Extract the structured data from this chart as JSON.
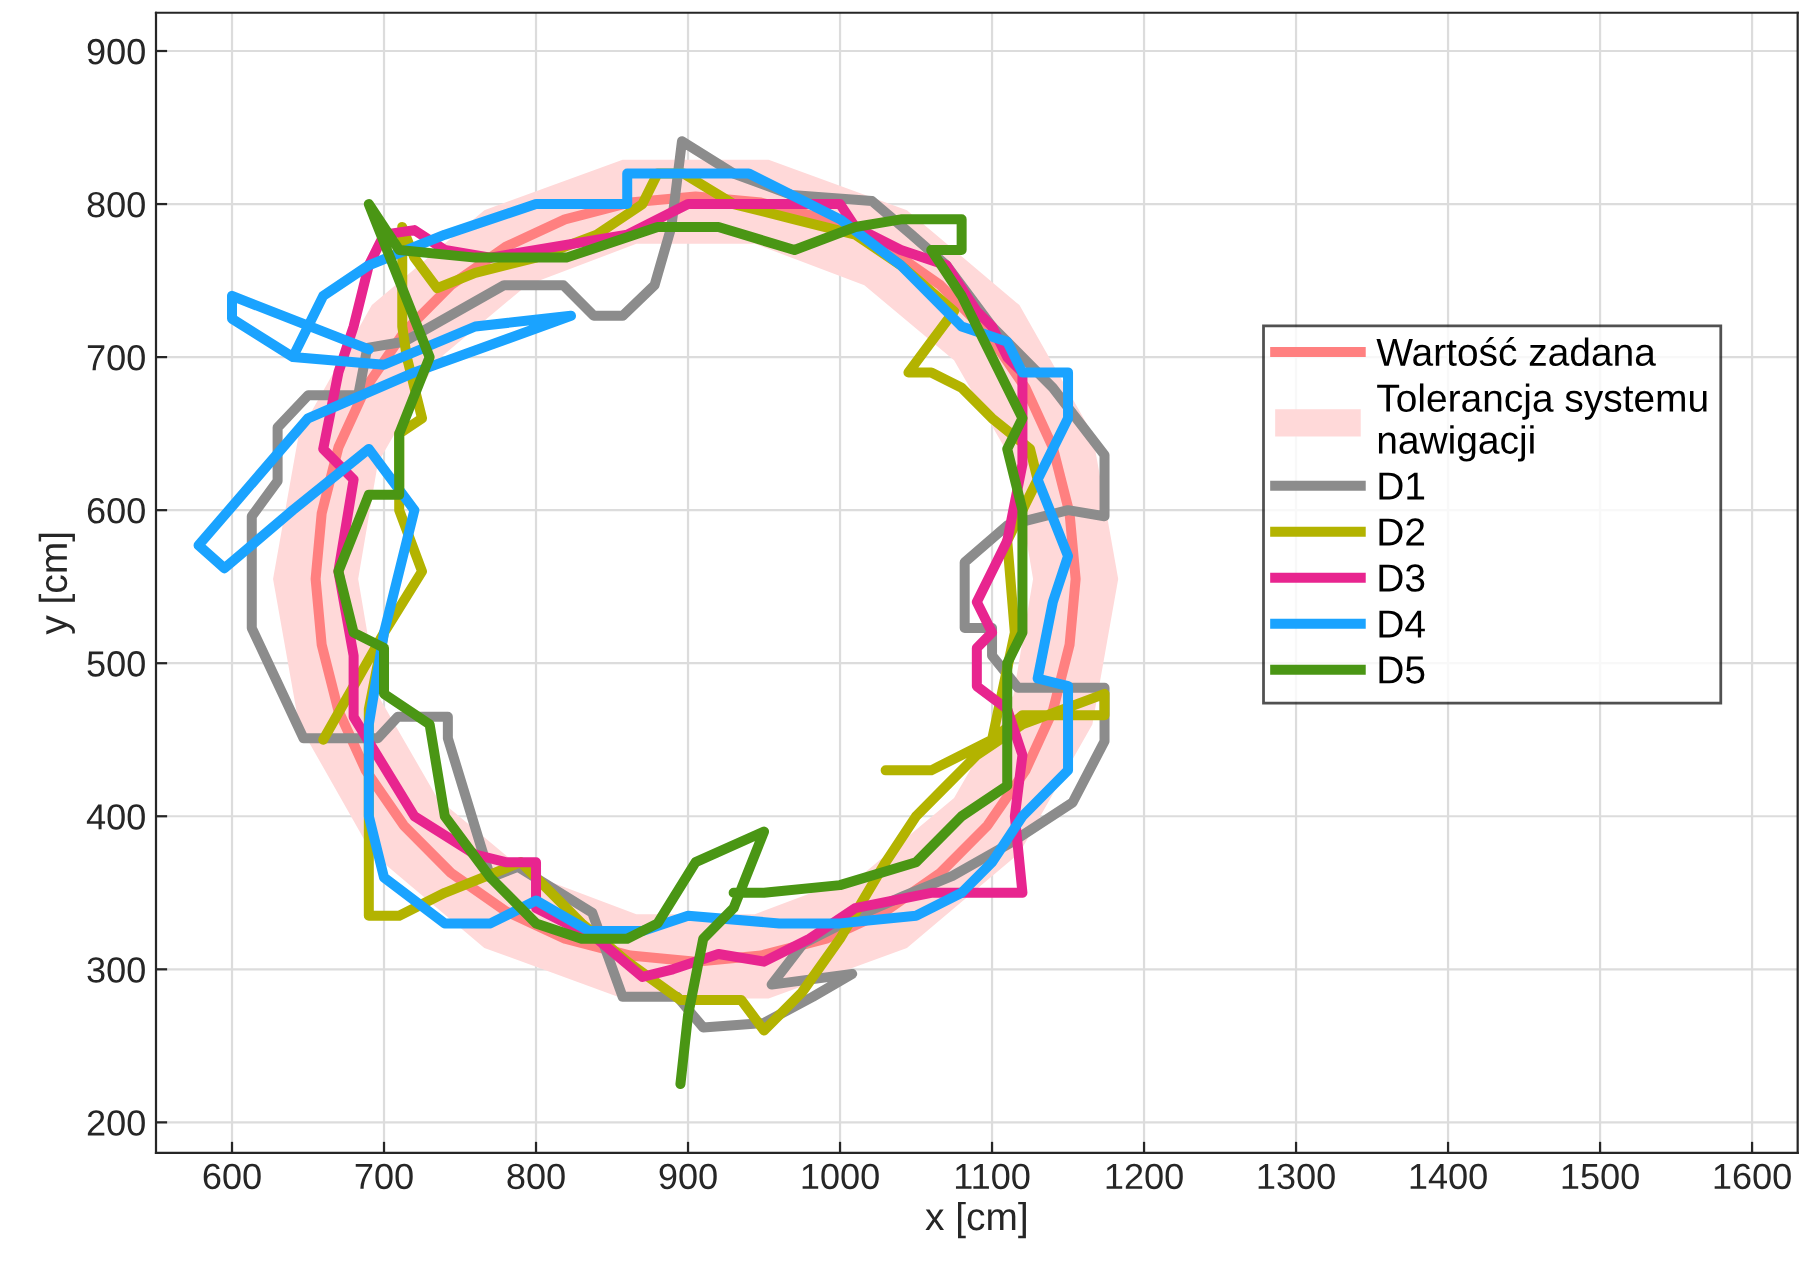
{
  "chart_data": {
    "type": "line",
    "xlabel": "x [cm]",
    "ylabel": "y [cm]",
    "xlim": [
      550,
      1630
    ],
    "ylim": [
      180,
      925
    ],
    "xticks": [
      600,
      700,
      800,
      900,
      1000,
      1100,
      1200,
      1300,
      1400,
      1500,
      1600
    ],
    "yticks": [
      200,
      300,
      400,
      500,
      600,
      700,
      800,
      900
    ],
    "grid": true,
    "legend": "right",
    "series": [
      {
        "name": "Tolerancja systemu nawigacji",
        "type": "area",
        "color": "#ffd9d9",
        "x": [
          1183,
          1166,
          1118,
          1044,
          953,
          857,
          766,
          692,
          644,
          627,
          644,
          692,
          766,
          857,
          953,
          1044,
          1118,
          1166,
          1183,
          1127,
          1114,
          1075,
          1016,
          944,
          866,
          794,
          735,
          696,
          683,
          696,
          735,
          794,
          866,
          944,
          1016,
          1075,
          1114,
          1127
        ],
        "values": [
          555,
          650,
          734,
          796,
          829,
          829,
          796,
          734,
          650,
          555,
          460,
          376,
          314,
          281,
          281,
          314,
          376,
          460,
          555,
          555,
          479,
          412,
          363,
          336,
          336,
          363,
          412,
          479,
          555,
          631,
          698,
          747,
          774,
          774,
          747,
          698,
          631,
          555
        ]
      },
      {
        "name": "Wartość zadana",
        "type": "line",
        "color": "#ff8080",
        "x": [
          1155,
          1151,
          1140,
          1122,
          1097,
          1066,
          1030,
          991,
          948,
          905,
          862,
          819,
          780,
          744,
          713,
          688,
          670,
          659,
          655,
          659,
          670,
          688,
          713,
          744,
          780,
          819,
          862,
          905,
          948,
          991,
          1030,
          1066,
          1097,
          1122,
          1140,
          1151,
          1155,
          1151
        ],
        "values": [
          555,
          598,
          641,
          680,
          716,
          747,
          772,
          790,
          801,
          805,
          801,
          790,
          772,
          747,
          716,
          680,
          641,
          598,
          555,
          512,
          469,
          430,
          394,
          363,
          338,
          320,
          309,
          305,
          309,
          320,
          338,
          363,
          394,
          430,
          469,
          512,
          555,
          598
        ]
      },
      {
        "name": "D1",
        "type": "line",
        "color": "#8c8c8c",
        "x": [
          1008,
          982,
          950,
          910,
          893,
          857,
          837,
          788,
          770,
          742,
          742,
          709,
          696,
          647,
          613,
          613,
          630,
          630,
          650,
          683,
          689,
          713,
          779,
          818,
          838,
          857,
          878,
          889,
          896,
          930,
          968,
          1021,
          1047,
          1070,
          1100,
          1140,
          1174,
          1174,
          1150,
          1110,
          1082,
          1082,
          1100,
          1100,
          1117,
          1174,
          1174,
          1153,
          1113,
          1074,
          1042,
          1012,
          976,
          955,
          1008,
          982
        ],
        "values": [
          297,
          282,
          265,
          262,
          282,
          282,
          337,
          367,
          360,
          451,
          465,
          465,
          451,
          451,
          523,
          596,
          619,
          654,
          675,
          675,
          706,
          710,
          747,
          747,
          727,
          727,
          747,
          785,
          841,
          820,
          806,
          802,
          780,
          760,
          720,
          680,
          636,
          596,
          600,
          590,
          566,
          523,
          523,
          505,
          484,
          484,
          449,
          409,
          383,
          361,
          348,
          335,
          317,
          290,
          297,
          282
        ]
      },
      {
        "name": "D2",
        "type": "line",
        "color": "#b3b300",
        "x": [
          897,
          880,
          870,
          840,
          800,
          760,
          735,
          720,
          712,
          712,
          715,
          725,
          710,
          710,
          725,
          700,
          660,
          700,
          690,
          690,
          710,
          740,
          790,
          830,
          860,
          895,
          935,
          950,
          975,
          1000,
          1030,
          1050,
          1070,
          1090,
          1120,
          1174,
          1174,
          1120,
          1100,
          1060,
          1030,
          1060,
          1100,
          1115,
          1110,
          1130,
          1125,
          1100,
          1080,
          1060,
          1045,
          1060,
          1075,
          1040,
          1010,
          970,
          930,
          897,
          880
        ],
        "values": [
          820,
          820,
          800,
          780,
          765,
          755,
          745,
          765,
          785,
          720,
          700,
          660,
          650,
          600,
          560,
          520,
          450,
          520,
          470,
          335,
          335,
          350,
          370,
          330,
          305,
          280,
          280,
          260,
          285,
          320,
          370,
          400,
          420,
          440,
          460,
          480,
          466,
          466,
          450,
          430,
          430,
          430,
          450,
          520,
          580,
          620,
          640,
          660,
          680,
          690,
          690,
          710,
          730,
          760,
          780,
          790,
          800,
          820,
          820
        ]
      },
      {
        "name": "D3",
        "type": "line",
        "color": "#e8258f",
        "x": [
          690,
          700,
          720,
          740,
          770,
          800,
          860,
          900,
          950,
          1000,
          1010,
          1040,
          1070,
          1090,
          1100,
          1110,
          1120,
          1120,
          1110,
          1100,
          1090,
          1100,
          1090,
          1090,
          1110,
          1120,
          1115,
          1120,
          1060,
          1010,
          980,
          950,
          920,
          890,
          870,
          840,
          800,
          800,
          780,
          760,
          720,
          680,
          680,
          670,
          680,
          660,
          670,
          680,
          690,
          700
        ],
        "values": [
          760,
          780,
          783,
          770,
          765,
          770,
          780,
          800,
          800,
          800,
          785,
          770,
          760,
          730,
          720,
          700,
          690,
          630,
          580,
          560,
          540,
          520,
          510,
          485,
          470,
          440,
          400,
          350,
          350,
          340,
          320,
          305,
          310,
          300,
          295,
          320,
          340,
          370,
          370,
          375,
          400,
          465,
          505,
          560,
          620,
          640,
          690,
          720,
          760,
          780
        ]
      },
      {
        "name": "D4",
        "type": "line",
        "color": "#1aa3ff",
        "x": [
          690,
          600,
          600,
          640,
          700,
          760,
          823,
          720,
          650,
          578,
          595,
          640,
          690,
          720,
          700,
          690,
          690,
          700,
          740,
          770,
          800,
          835,
          870,
          900,
          960,
          1000,
          1050,
          1080,
          1100,
          1120,
          1150,
          1150,
          1130,
          1140,
          1150,
          1130,
          1150,
          1150,
          1120,
          1110,
          1080,
          1040,
          1000,
          960,
          940,
          860,
          860,
          800,
          740,
          690,
          660,
          640
        ],
        "values": [
          705,
          740,
          725,
          700,
          695,
          720,
          727,
          690,
          660,
          577,
          562,
          600,
          640,
          600,
          520,
          460,
          400,
          360,
          330,
          330,
          345,
          325,
          325,
          335,
          330,
          330,
          335,
          350,
          370,
          400,
          430,
          485,
          490,
          540,
          570,
          620,
          660,
          690,
          690,
          710,
          720,
          760,
          790,
          810,
          820,
          820,
          800,
          800,
          780,
          760,
          740,
          700
        ]
      },
      {
        "name": "D5",
        "type": "line",
        "color": "#4a9614",
        "x": [
          895,
          900,
          910,
          930,
          950,
          905,
          880,
          860,
          830,
          800,
          770,
          740,
          730,
          700,
          700,
          680,
          670,
          690,
          710,
          710,
          730,
          690,
          710,
          760,
          820,
          880,
          920,
          970,
          1010,
          1040,
          1080,
          1080,
          1060,
          1080,
          1100,
          1120,
          1110,
          1120,
          1120,
          1120,
          1110,
          1110,
          1080,
          1050,
          1000,
          950,
          930
        ],
        "values": [
          225,
          270,
          320,
          340,
          390,
          370,
          330,
          320,
          320,
          330,
          360,
          400,
          460,
          480,
          510,
          520,
          560,
          610,
          610,
          650,
          700,
          800,
          770,
          765,
          765,
          785,
          785,
          770,
          785,
          790,
          790,
          770,
          770,
          740,
          700,
          660,
          640,
          600,
          550,
          520,
          500,
          420,
          400,
          370,
          355,
          350,
          350
        ]
      }
    ]
  }
}
